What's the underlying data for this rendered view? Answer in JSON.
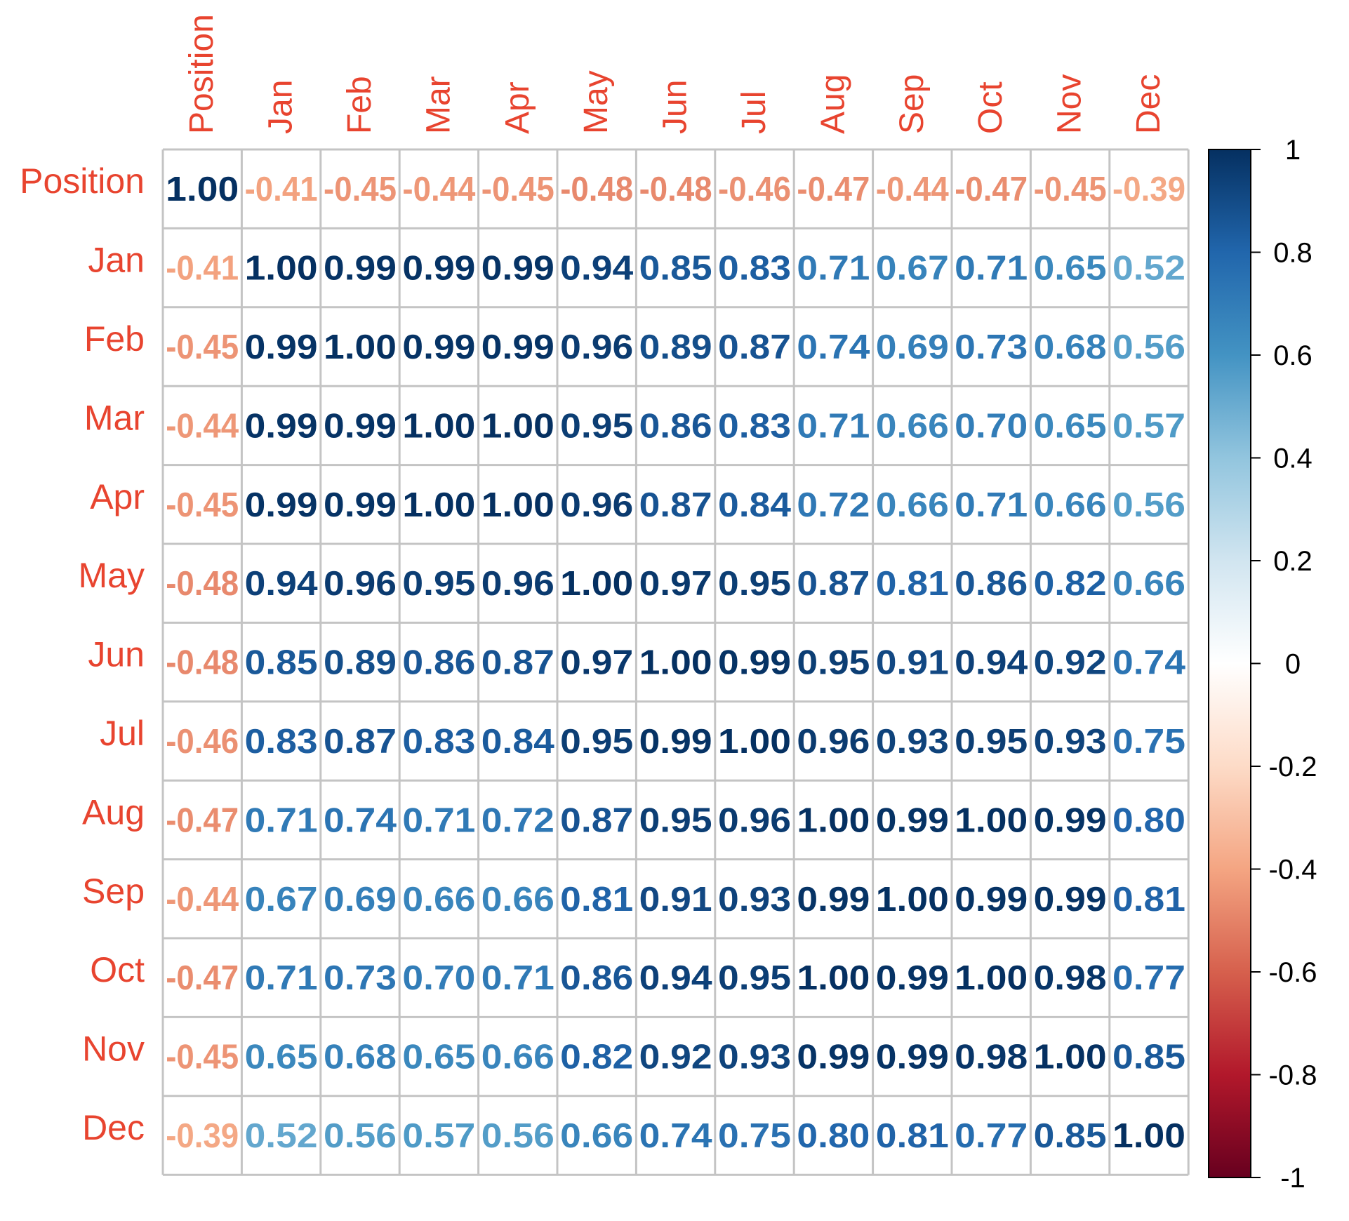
{
  "chart_data": {
    "type": "heatmap",
    "variables": [
      "Position",
      "Jan",
      "Feb",
      "Mar",
      "Apr",
      "May",
      "Jun",
      "Jul",
      "Aug",
      "Sep",
      "Oct",
      "Nov",
      "Dec"
    ],
    "matrix": [
      [
        1.0,
        -0.41,
        -0.45,
        -0.44,
        -0.45,
        -0.48,
        -0.48,
        -0.46,
        -0.47,
        -0.44,
        -0.47,
        -0.45,
        -0.39
      ],
      [
        -0.41,
        1.0,
        0.99,
        0.99,
        0.99,
        0.94,
        0.85,
        0.83,
        0.71,
        0.67,
        0.71,
        0.65,
        0.52
      ],
      [
        -0.45,
        0.99,
        1.0,
        0.99,
        0.99,
        0.96,
        0.89,
        0.87,
        0.74,
        0.69,
        0.73,
        0.68,
        0.56
      ],
      [
        -0.44,
        0.99,
        0.99,
        1.0,
        1.0,
        0.95,
        0.86,
        0.83,
        0.71,
        0.66,
        0.7,
        0.65,
        0.57
      ],
      [
        -0.45,
        0.99,
        0.99,
        1.0,
        1.0,
        0.96,
        0.87,
        0.84,
        0.72,
        0.66,
        0.71,
        0.66,
        0.56
      ],
      [
        -0.48,
        0.94,
        0.96,
        0.95,
        0.96,
        1.0,
        0.97,
        0.95,
        0.87,
        0.81,
        0.86,
        0.82,
        0.66
      ],
      [
        -0.48,
        0.85,
        0.89,
        0.86,
        0.87,
        0.97,
        1.0,
        0.99,
        0.95,
        0.91,
        0.94,
        0.92,
        0.74
      ],
      [
        -0.46,
        0.83,
        0.87,
        0.83,
        0.84,
        0.95,
        0.99,
        1.0,
        0.96,
        0.93,
        0.95,
        0.93,
        0.75
      ],
      [
        -0.47,
        0.71,
        0.74,
        0.71,
        0.72,
        0.87,
        0.95,
        0.96,
        1.0,
        0.99,
        1.0,
        0.99,
        0.8
      ],
      [
        -0.44,
        0.67,
        0.69,
        0.66,
        0.66,
        0.81,
        0.91,
        0.93,
        0.99,
        1.0,
        0.99,
        0.99,
        0.81
      ],
      [
        -0.47,
        0.71,
        0.73,
        0.7,
        0.71,
        0.86,
        0.94,
        0.95,
        1.0,
        0.99,
        1.0,
        0.98,
        0.77
      ],
      [
        -0.45,
        0.65,
        0.68,
        0.65,
        0.66,
        0.82,
        0.92,
        0.93,
        0.99,
        0.99,
        0.98,
        1.0,
        0.85
      ],
      [
        -0.39,
        0.52,
        0.56,
        0.57,
        0.56,
        0.66,
        0.74,
        0.75,
        0.8,
        0.81,
        0.77,
        0.85,
        1.0
      ]
    ],
    "value_format": "2 decimals",
    "label_color": "#e8442f",
    "grid": true,
    "colorbar": {
      "range": [
        -1,
        1
      ],
      "ticks": [
        1,
        0.8,
        0.6,
        0.4,
        0.2,
        0,
        -0.2,
        -0.4,
        -0.6,
        -0.8,
        -1
      ],
      "tick_labels": [
        "1",
        "0.8",
        "0.6",
        "0.4",
        "0.2",
        "0",
        "-0.2",
        "-0.4",
        "-0.6",
        "-0.8",
        "-1"
      ],
      "colors": [
        "#67001f",
        "#b2182b",
        "#d6604d",
        "#f4a582",
        "#fddbc7",
        "#ffffff",
        "#d1e5f0",
        "#92c5de",
        "#4393c3",
        "#2166ac",
        "#053061"
      ]
    }
  }
}
